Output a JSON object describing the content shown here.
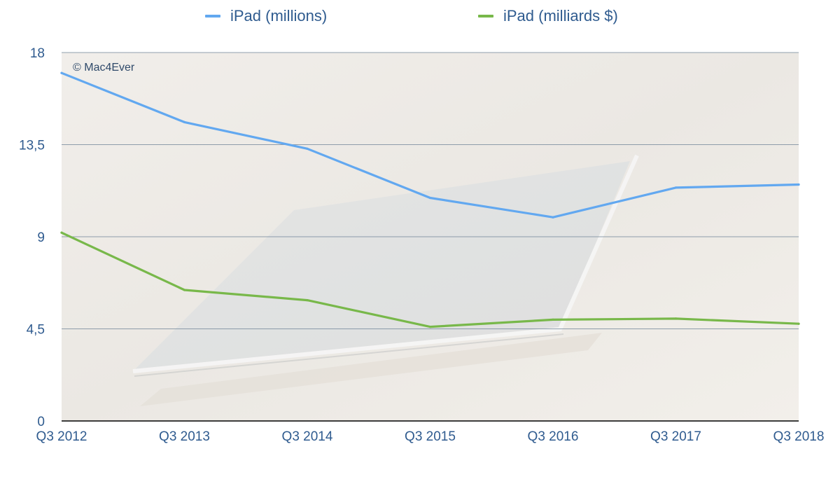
{
  "legend": [
    {
      "label": "iPad (millions)",
      "color": "#62a8f0"
    },
    {
      "label": "iPad (milliards $)",
      "color": "#78b84a"
    }
  ],
  "watermark": "© Mac4Ever",
  "chart_data": {
    "type": "line",
    "categories": [
      "Q3 2012",
      "Q3 2013",
      "Q3 2014",
      "Q3 2015",
      "Q3 2016",
      "Q3 2017",
      "Q3 2018"
    ],
    "series": [
      {
        "name": "iPad (millions)",
        "color": "#62a8f0",
        "values": [
          17.0,
          14.6,
          13.3,
          10.9,
          9.95,
          11.4,
          11.55
        ]
      },
      {
        "name": "iPad (milliards $)",
        "color": "#78b84a",
        "values": [
          9.2,
          6.4,
          5.9,
          4.6,
          4.95,
          5.0,
          4.75
        ]
      }
    ],
    "yticks": [
      "0",
      "4,5",
      "9",
      "13,5",
      "18"
    ],
    "ytick_values": [
      0,
      4.5,
      9,
      13.5,
      18
    ],
    "ylim": [
      0,
      18
    ],
    "grid": true,
    "legend_position": "top",
    "title": "",
    "xlabel": "",
    "ylabel": ""
  }
}
